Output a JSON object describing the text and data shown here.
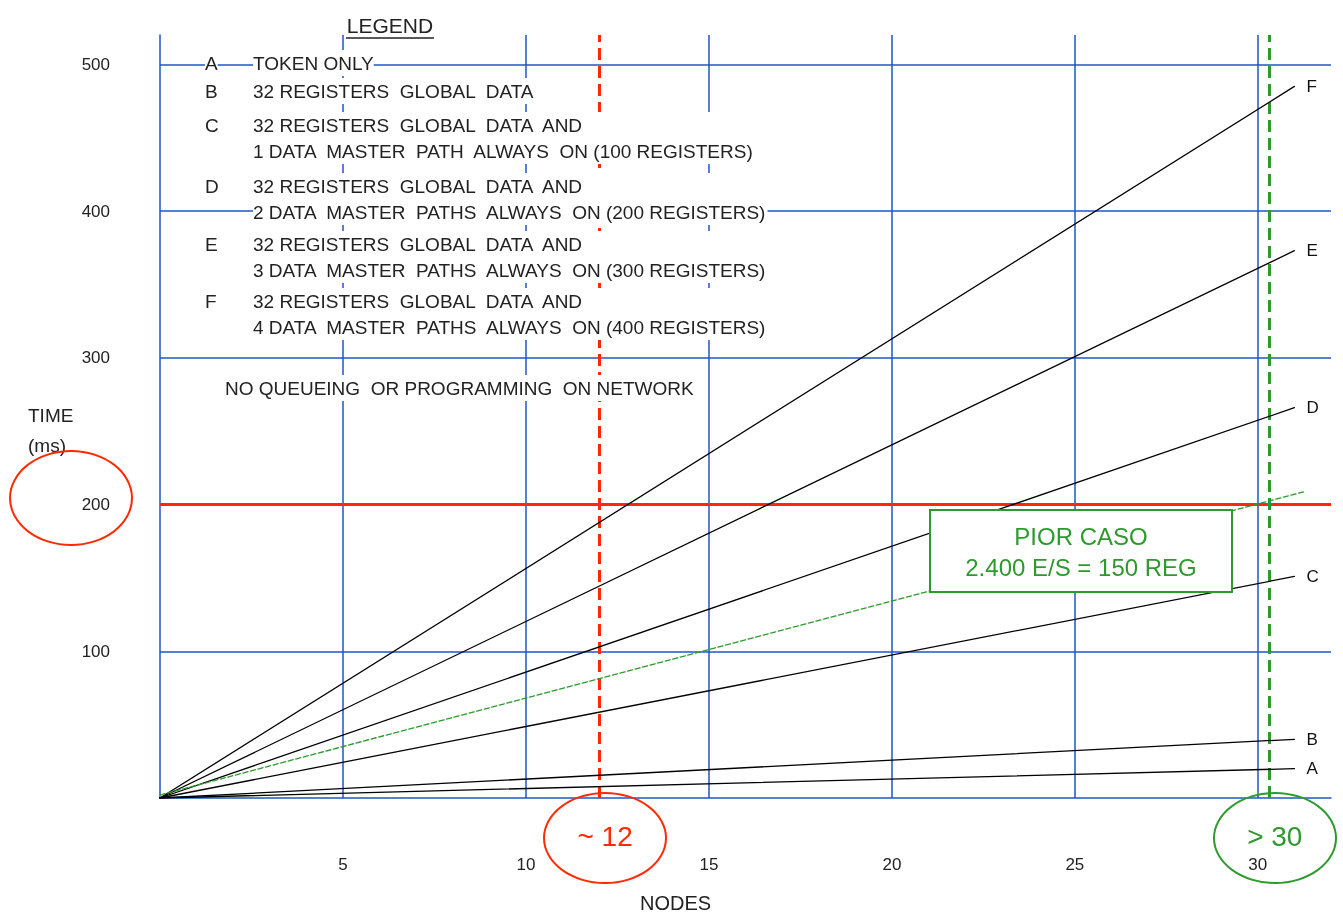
{
  "chart_data": {
    "type": "line",
    "xlabel": "NODES",
    "ylabel": "TIME\n(ms)",
    "xlim": [
      0,
      32
    ],
    "xticks": [
      5,
      10,
      15,
      20,
      25,
      30
    ],
    "ylim": [
      0,
      520
    ],
    "yticks": [
      100,
      200,
      300,
      400,
      500
    ],
    "grid": true,
    "marker": "none",
    "line_style": "solid",
    "series": [
      {
        "name": "A",
        "color": "#000000",
        "x": [
          0,
          31
        ],
        "values": [
          0,
          20
        ]
      },
      {
        "name": "B",
        "color": "#000000",
        "x": [
          0,
          31
        ],
        "values": [
          0,
          40
        ]
      },
      {
        "name": "C",
        "color": "#000000",
        "x": [
          0,
          31
        ],
        "values": [
          0,
          151
        ]
      },
      {
        "name": "D",
        "color": "#000000",
        "x": [
          0,
          31
        ],
        "values": [
          0,
          266
        ]
      },
      {
        "name": "E",
        "color": "#000000",
        "x": [
          0,
          31
        ],
        "values": [
          0,
          373
        ]
      },
      {
        "name": "F",
        "color": "#000000",
        "x": [
          0,
          31
        ],
        "values": [
          0,
          485
        ]
      },
      {
        "color": "#2e9a2e",
        "line_style": "dashed",
        "x": [
          0,
          31.3
        ],
        "values": [
          2,
          209
        ]
      }
    ],
    "ref_lines": [
      {
        "axis": "y",
        "value": 200,
        "color": "#ff2a00",
        "line_style": "solid"
      },
      {
        "axis": "x",
        "value": 12,
        "label": "~ 12",
        "color": "#ff2a00",
        "line_style": "dashed"
      },
      {
        "axis": "x",
        "value": 30.3,
        "label": "> 30",
        "color": "#2e9a2e",
        "line_style": "dashed"
      }
    ],
    "annotations": [
      "LEGEND",
      "A",
      "TOKEN ONLY",
      "B",
      "32 REGISTERS  GLOBAL  DATA",
      "C",
      "32 REGISTERS  GLOBAL  DATA  AND\n1 DATA  MASTER  PATH  ALWAYS  ON (100 REGISTERS)",
      "D",
      "32 REGISTERS  GLOBAL  DATA  AND\n2 DATA  MASTER  PATHS  ALWAYS  ON (200 REGISTERS)",
      "E",
      "32 REGISTERS  GLOBAL  DATA  AND\n3 DATA  MASTER  PATHS  ALWAYS  ON (300 REGISTERS)",
      "F",
      "32 REGISTERS  GLOBAL  DATA  AND\n4 DATA  MASTER  PATHS  ALWAYS  ON (400 REGISTERS)",
      "NO QUEUEING  OR PROGRAMMING  ON NETWORK",
      "PIOR CASO\n2.400 E/S = 150 REG"
    ]
  }
}
